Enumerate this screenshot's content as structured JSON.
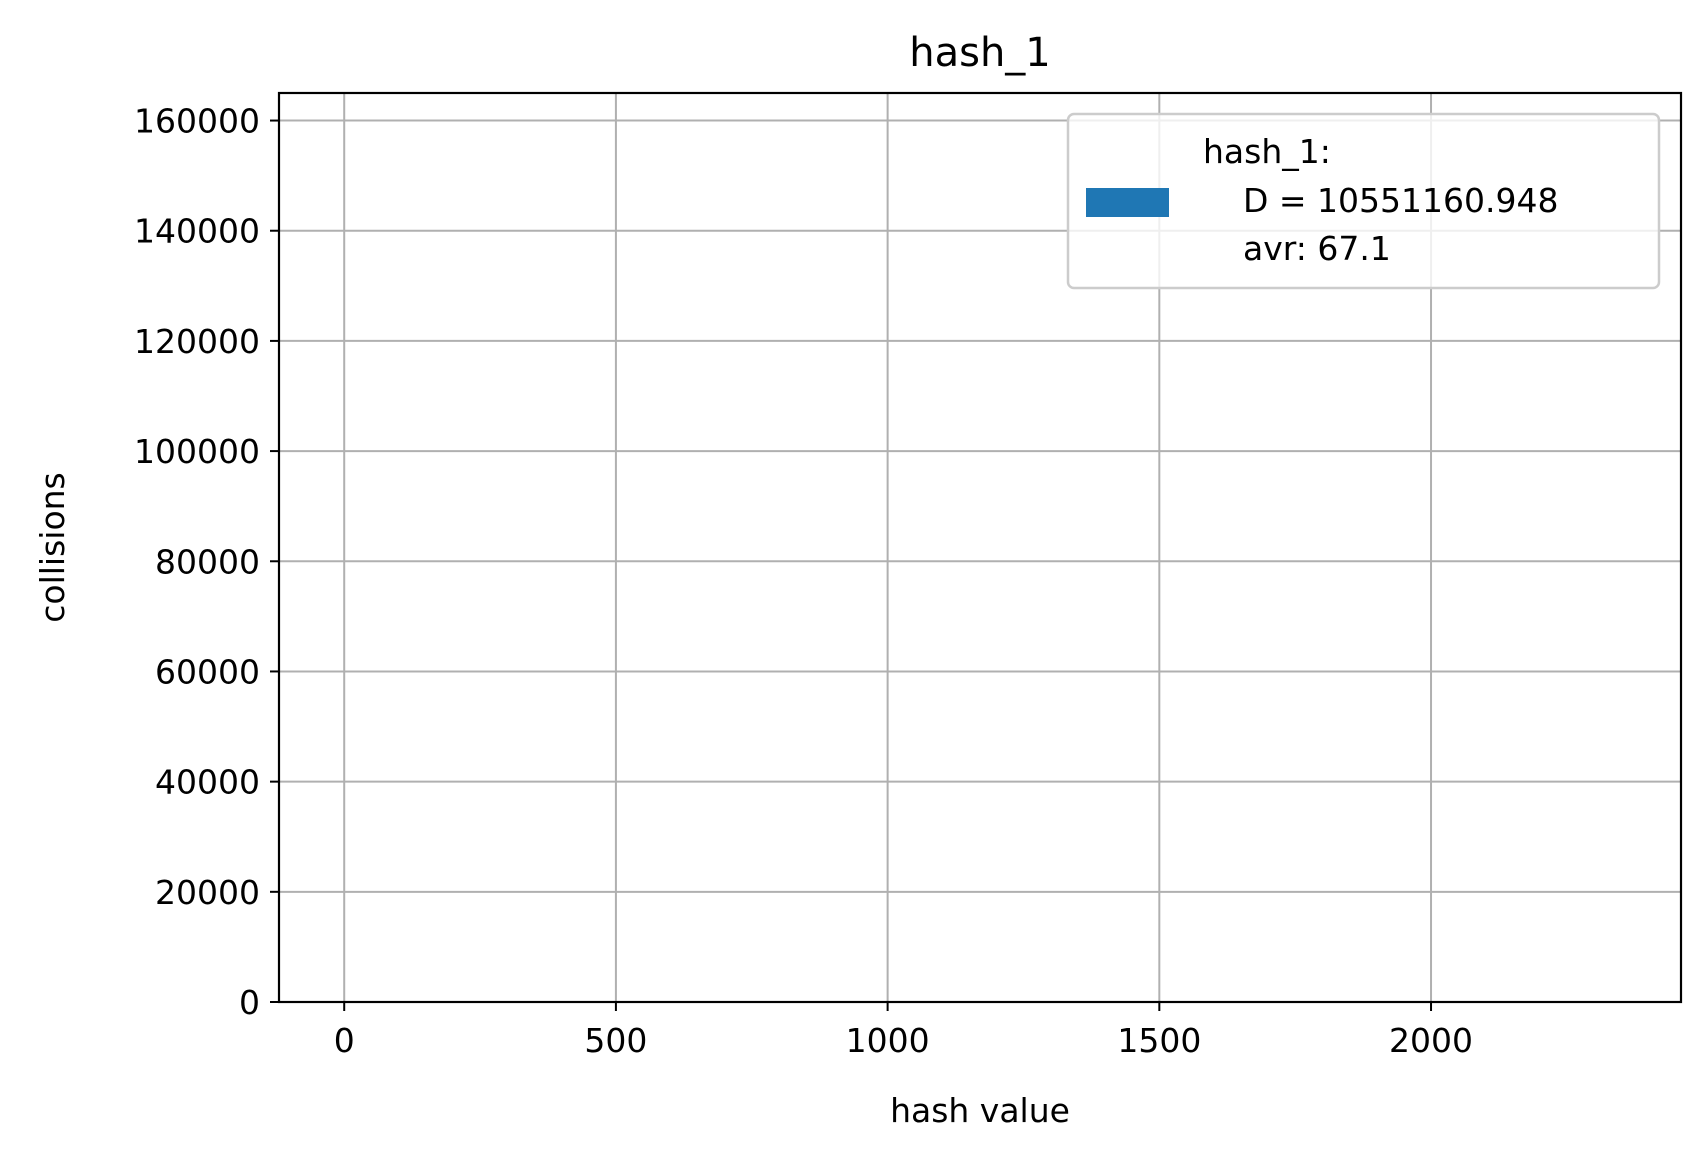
{
  "chart_data": {
    "type": "bar",
    "title": "hash_1",
    "xlabel": "hash value",
    "ylabel": "collisions",
    "xlim": [
      -120,
      2460
    ],
    "ylim": [
      0,
      165000
    ],
    "xticks": [
      0,
      500,
      1000,
      1500,
      2000
    ],
    "yticks": [
      0,
      20000,
      40000,
      60000,
      80000,
      100000,
      120000,
      140000,
      160000
    ],
    "grid": true,
    "legend_position": "top-right",
    "series": [
      {
        "name": "hash_1:",
        "color": "#1f77b4",
        "values": []
      }
    ],
    "legend": {
      "title": "hash_1:",
      "lines": [
        "D = 10551160.948",
        "avr: 67.1"
      ]
    }
  }
}
